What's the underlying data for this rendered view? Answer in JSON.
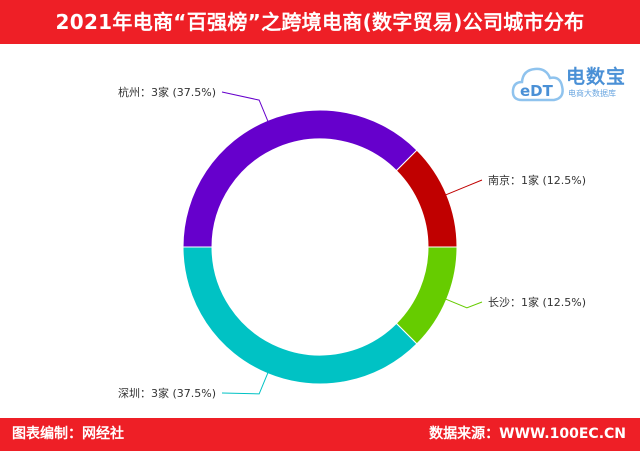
{
  "header": {
    "title": "2021年电商“百强榜”之跨境电商(数字贸易)公司城市分布"
  },
  "logo": {
    "mark": "eDT",
    "name": "电数宝",
    "subtitle": "电商大数据库"
  },
  "footer": {
    "left": "图表编制：网经社",
    "right": "数据来源：WWW.100EC.CN"
  },
  "colors": {
    "bar": "#ee1f26",
    "bg": "#ffffff"
  },
  "chart_data": {
    "type": "pie",
    "donut": true,
    "unit": "家",
    "slices": [
      {
        "name": "南京",
        "value": 1,
        "percent": 12.5,
        "color": "#c00000",
        "label": "南京：1家 (12.5%)"
      },
      {
        "name": "长沙",
        "value": 1,
        "percent": 12.5,
        "color": "#66cc00",
        "label": "长沙：1家 (12.5%)"
      },
      {
        "name": "深圳",
        "value": 3,
        "percent": 37.5,
        "color": "#00c2c4",
        "label": "深圳：3家 (37.5%)"
      },
      {
        "name": "杭州",
        "value": 3,
        "percent": 37.5,
        "color": "#6600cc",
        "label": "杭州：3家 (37.5%)"
      }
    ]
  }
}
